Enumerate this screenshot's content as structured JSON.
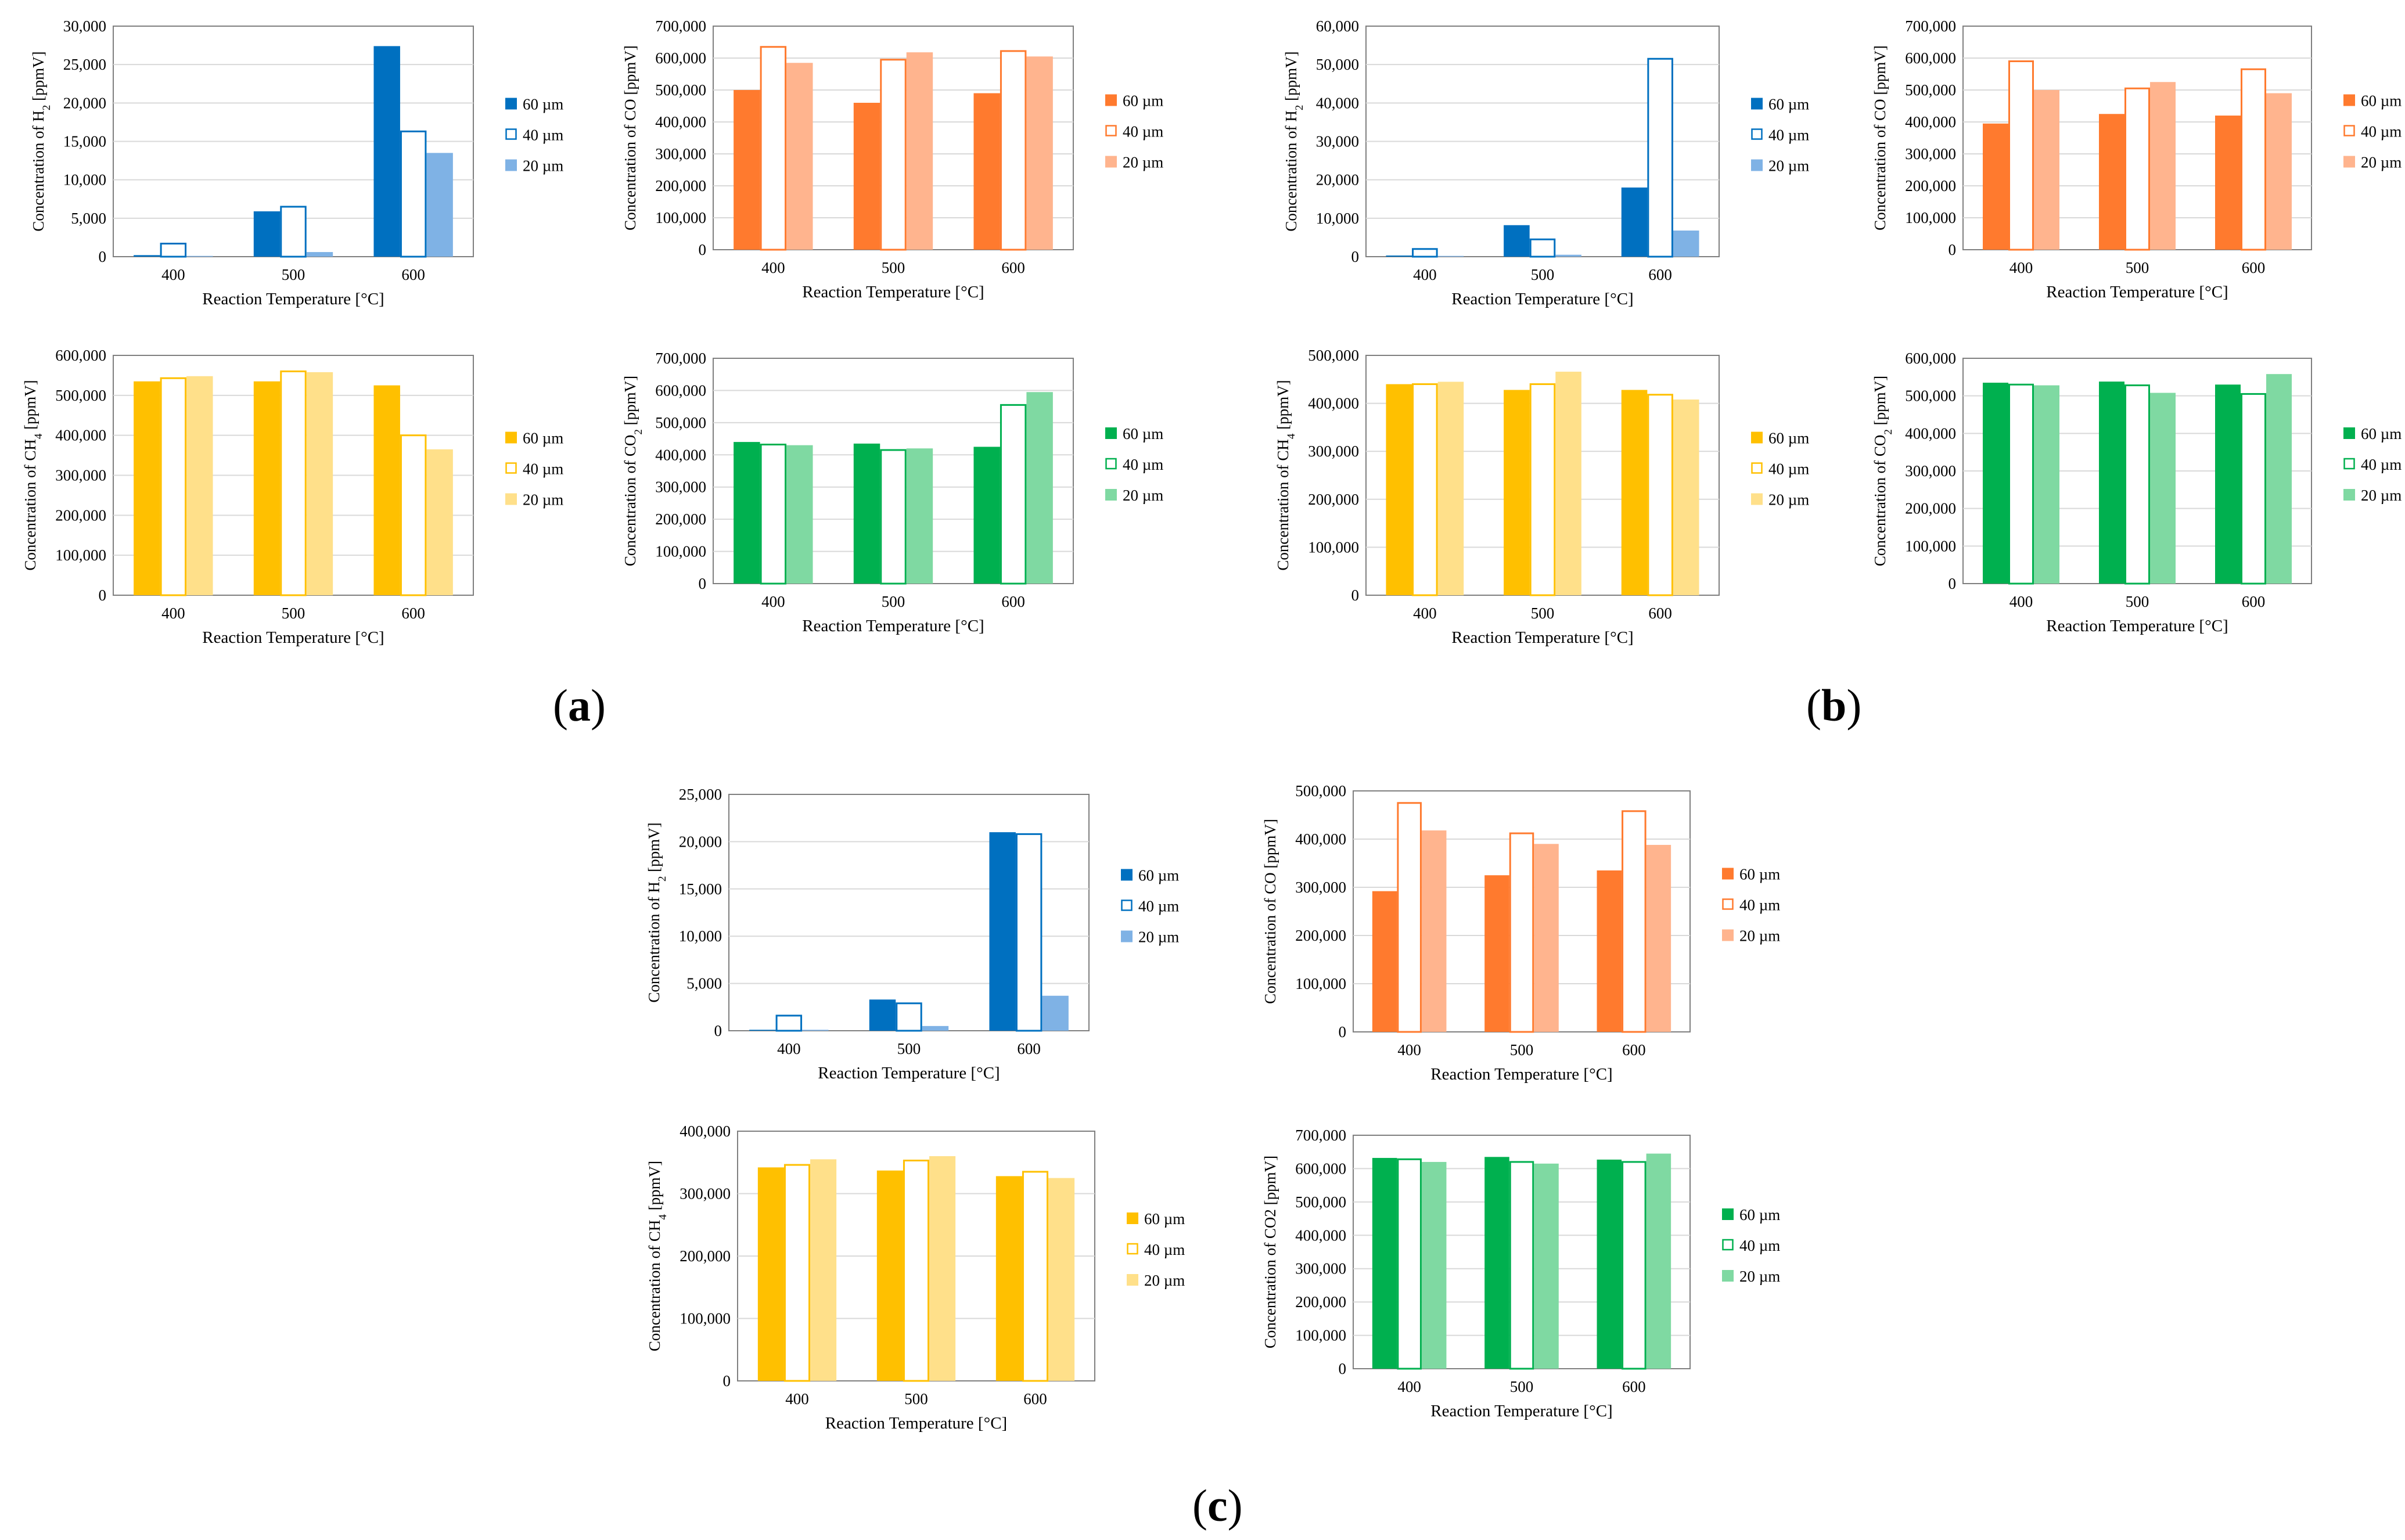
{
  "colors": {
    "blue": "#0070c0",
    "blue_light": "#7fb2e5",
    "orange": "#ff7a2e",
    "orange_light": "#ffb48e",
    "yellow": "#ffc000",
    "yellow_light": "#ffe08a",
    "green": "#00b04f",
    "green_light": "#7fd9a2",
    "axis": "#7f7f7f",
    "grid": "#d9d9d9"
  },
  "series_names": [
    "60 µm",
    "40 µm",
    "20 µm"
  ],
  "panel_labels": {
    "a": "a",
    "b": "b",
    "c": "c"
  },
  "chart_data": [
    {
      "id": "a_h2",
      "panel": "a",
      "type": "bar",
      "gas": "H2",
      "ylabel": "Concentration of H₂ [ppmV]",
      "xlabel": "Reaction Temperature [°C]",
      "categories": [
        "400",
        "500",
        "600"
      ],
      "ylim": [
        0,
        30000
      ],
      "yticks": [
        "0",
        "5,000",
        "10,000",
        "15,000",
        "20,000",
        "25,000",
        "30,000"
      ],
      "series": [
        {
          "name": "60 µm",
          "style": "solid",
          "values": [
            200,
            5900,
            27400
          ]
        },
        {
          "name": "40 µm",
          "style": "outline",
          "values": [
            1700,
            6500,
            16300
          ]
        },
        {
          "name": "20 µm",
          "style": "light",
          "values": [
            100,
            600,
            13500
          ]
        }
      ]
    },
    {
      "id": "a_co",
      "panel": "a",
      "type": "bar",
      "gas": "CO",
      "ylabel": "Concentration of CO [ppmV]",
      "xlabel": "Reaction Temperature [°C]",
      "categories": [
        "400",
        "500",
        "600"
      ],
      "ylim": [
        0,
        700000
      ],
      "yticks": [
        "0",
        "100,000",
        "200,000",
        "300,000",
        "400,000",
        "500,000",
        "600,000",
        "700,000"
      ],
      "series": [
        {
          "name": "60 µm",
          "style": "solid",
          "values": [
            500000,
            460000,
            490000
          ]
        },
        {
          "name": "40 µm",
          "style": "outline",
          "values": [
            635000,
            595000,
            622000
          ]
        },
        {
          "name": "20 µm",
          "style": "light",
          "values": [
            585000,
            618000,
            605000
          ]
        }
      ]
    },
    {
      "id": "a_ch4",
      "panel": "a",
      "type": "bar",
      "gas": "CH4",
      "ylabel": "Concentration of CH₄ [ppmV]",
      "xlabel": "Reaction Temperature [°C]",
      "categories": [
        "400",
        "500",
        "600"
      ],
      "ylim": [
        0,
        600000
      ],
      "yticks": [
        "0",
        "100,000",
        "200,000",
        "300,000",
        "400,000",
        "500,000",
        "600,000"
      ],
      "series": [
        {
          "name": "60 µm",
          "style": "solid",
          "values": [
            535000,
            535000,
            525000
          ]
        },
        {
          "name": "40 µm",
          "style": "outline",
          "values": [
            543000,
            560000,
            400000
          ]
        },
        {
          "name": "20 µm",
          "style": "light",
          "values": [
            548000,
            558000,
            365000
          ]
        }
      ]
    },
    {
      "id": "a_co2",
      "panel": "a",
      "type": "bar",
      "gas": "CO2",
      "ylabel": "Concentration of CO₂ [ppmV]",
      "xlabel": "Reaction Temperature [°C]",
      "categories": [
        "400",
        "500",
        "600"
      ],
      "ylim": [
        0,
        700000
      ],
      "yticks": [
        "0",
        "100,000",
        "200,000",
        "300,000",
        "400,000",
        "500,000",
        "600,000",
        "700,000"
      ],
      "series": [
        {
          "name": "60 µm",
          "style": "solid",
          "values": [
            440000,
            435000,
            425000
          ]
        },
        {
          "name": "40 µm",
          "style": "outline",
          "values": [
            432000,
            415000,
            555000
          ]
        },
        {
          "name": "20 µm",
          "style": "light",
          "values": [
            430000,
            420000,
            595000
          ]
        }
      ]
    },
    {
      "id": "b_h2",
      "panel": "b",
      "type": "bar",
      "gas": "H2",
      "ylabel": "Concentration of H₂ [ppmV]",
      "xlabel": "Reaction Temperature [°C]",
      "categories": [
        "400",
        "500",
        "600"
      ],
      "ylim": [
        0,
        60000
      ],
      "yticks": [
        "0",
        "10,000",
        "20,000",
        "30,000",
        "40,000",
        "50,000",
        "60,000"
      ],
      "series": [
        {
          "name": "60 µm",
          "style": "solid",
          "values": [
            300,
            8200,
            18000
          ]
        },
        {
          "name": "40 µm",
          "style": "outline",
          "values": [
            2000,
            4500,
            51500
          ]
        },
        {
          "name": "20 µm",
          "style": "light",
          "values": [
            200,
            500,
            6800
          ]
        }
      ]
    },
    {
      "id": "b_co",
      "panel": "b",
      "type": "bar",
      "gas": "CO",
      "ylabel": "Concentration of CO [ppmV]",
      "xlabel": "Reaction Temperature [°C]",
      "categories": [
        "400",
        "500",
        "600"
      ],
      "ylim": [
        0,
        700000
      ],
      "yticks": [
        "0",
        "100,000",
        "200,000",
        "300,000",
        "400,000",
        "500,000",
        "600,000",
        "700,000"
      ],
      "series": [
        {
          "name": "60 µm",
          "style": "solid",
          "values": [
            395000,
            425000,
            420000
          ]
        },
        {
          "name": "40 µm",
          "style": "outline",
          "values": [
            590000,
            505000,
            565000
          ]
        },
        {
          "name": "20 µm",
          "style": "light",
          "values": [
            500000,
            525000,
            490000
          ]
        }
      ]
    },
    {
      "id": "b_ch4",
      "panel": "b",
      "type": "bar",
      "gas": "CH4",
      "ylabel": "Concentration of CH₄ [ppmV]",
      "xlabel": "Reaction Temperature [°C]",
      "categories": [
        "400",
        "500",
        "600"
      ],
      "ylim": [
        0,
        500000
      ],
      "yticks": [
        "0",
        "100,000",
        "200,000",
        "300,000",
        "400,000",
        "500,000"
      ],
      "series": [
        {
          "name": "60 µm",
          "style": "solid",
          "values": [
            440000,
            428000,
            428000
          ]
        },
        {
          "name": "40 µm",
          "style": "outline",
          "values": [
            440000,
            440000,
            418000
          ]
        },
        {
          "name": "20 µm",
          "style": "light",
          "values": [
            445000,
            466000,
            408000
          ]
        }
      ]
    },
    {
      "id": "b_co2",
      "panel": "b",
      "type": "bar",
      "gas": "CO2",
      "ylabel": "Concentration of  CO₂ [ppmV]",
      "xlabel": "Reaction Temperature [°C]",
      "categories": [
        "400",
        "500",
        "600"
      ],
      "ylim": [
        0,
        600000
      ],
      "yticks": [
        "0",
        "100,000",
        "200,000",
        "300,000",
        "400,000",
        "500,000",
        "600,000"
      ],
      "series": [
        {
          "name": "60 µm",
          "style": "solid",
          "values": [
            535000,
            538000,
            530000
          ]
        },
        {
          "name": "40 µm",
          "style": "outline",
          "values": [
            530000,
            528000,
            505000
          ]
        },
        {
          "name": "20 µm",
          "style": "light",
          "values": [
            528000,
            508000,
            558000
          ]
        }
      ]
    },
    {
      "id": "c_h2",
      "panel": "c",
      "type": "bar",
      "gas": "H2",
      "ylabel": "Concentration of H₂ [ppmV]",
      "xlabel": "Reaction Temperature [°C]",
      "categories": [
        "400",
        "500",
        "600"
      ],
      "ylim": [
        0,
        25000
      ],
      "yticks": [
        "0",
        "5,000",
        "10,000",
        "15,000",
        "20,000",
        "25,000"
      ],
      "series": [
        {
          "name": "60 µm",
          "style": "solid",
          "values": [
            100,
            3300,
            21000
          ]
        },
        {
          "name": "40 µm",
          "style": "outline",
          "values": [
            1600,
            2900,
            20800
          ]
        },
        {
          "name": "20 µm",
          "style": "light",
          "values": [
            100,
            500,
            3700
          ]
        }
      ]
    },
    {
      "id": "c_co",
      "panel": "c",
      "type": "bar",
      "gas": "CO",
      "ylabel": "Concentration of CO [ppmV]",
      "xlabel": "Reaction Temperature [°C]",
      "categories": [
        "400",
        "500",
        "600"
      ],
      "ylim": [
        0,
        500000
      ],
      "yticks": [
        "0",
        "100,000",
        "200,000",
        "300,000",
        "400,000",
        "500,000"
      ],
      "series": [
        {
          "name": "60 µm",
          "style": "solid",
          "values": [
            292000,
            325000,
            335000
          ]
        },
        {
          "name": "40 µm",
          "style": "outline",
          "values": [
            475000,
            412000,
            458000
          ]
        },
        {
          "name": "20 µm",
          "style": "light",
          "values": [
            418000,
            390000,
            388000
          ]
        }
      ]
    },
    {
      "id": "c_ch4",
      "panel": "c",
      "type": "bar",
      "gas": "CH4",
      "ylabel": "Concentration of CH₄ [ppmV]",
      "xlabel": "Reaction Temperature [°C]",
      "categories": [
        "400",
        "500",
        "600"
      ],
      "ylim": [
        0,
        400000
      ],
      "yticks": [
        "0",
        "100,000",
        "200,000",
        "300,000",
        "400,000"
      ],
      "series": [
        {
          "name": "60 µm",
          "style": "solid",
          "values": [
            342000,
            337000,
            328000
          ]
        },
        {
          "name": "40 µm",
          "style": "outline",
          "values": [
            346000,
            353000,
            335000
          ]
        },
        {
          "name": "20 µm",
          "style": "light",
          "values": [
            355000,
            360000,
            325000
          ]
        }
      ]
    },
    {
      "id": "c_co2",
      "panel": "c",
      "type": "bar",
      "gas": "CO2",
      "ylabel": "Concentration of CO2 [ppmV]",
      "xlabel": "Reaction Temperature [°C]",
      "categories": [
        "400",
        "500",
        "600"
      ],
      "ylim": [
        0,
        700000
      ],
      "yticks": [
        "0",
        "100,000",
        "200,000",
        "300,000",
        "400,000",
        "500,000",
        "600,000",
        "700,000"
      ],
      "series": [
        {
          "name": "60 µm",
          "style": "solid",
          "values": [
            632000,
            635000,
            627000
          ]
        },
        {
          "name": "40 µm",
          "style": "outline",
          "values": [
            628000,
            620000,
            620000
          ]
        },
        {
          "name": "20 µm",
          "style": "light",
          "values": [
            620000,
            615000,
            645000
          ]
        }
      ]
    }
  ]
}
